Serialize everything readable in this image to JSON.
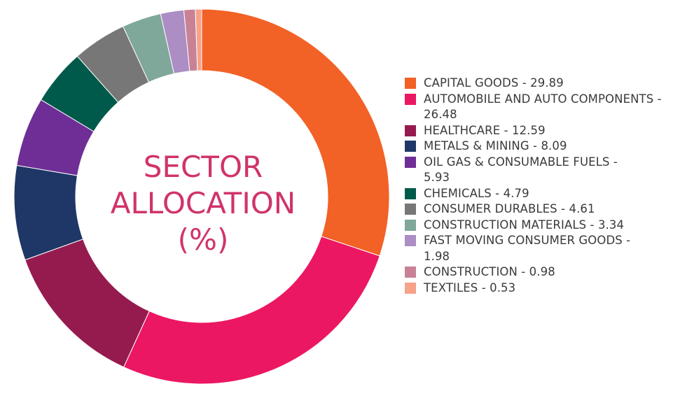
{
  "title_lines": [
    "SECTOR",
    "ALLOCATION",
    "(%)"
  ],
  "chart_data": {
    "type": "pie",
    "style": "donut",
    "title": "SECTOR ALLOCATION (%)",
    "categories": [
      "CAPITAL GOODS",
      "AUTOMOBILE AND AUTO COMPONENTS",
      "HEALTHCARE",
      "METALS & MINING",
      "OIL GAS & CONSUMABLE FUELS",
      "CHEMICALS",
      "CONSUMER DURABLES",
      "CONSTRUCTION MATERIALS",
      "FAST MOVING CONSUMER GOODS",
      "CONSTRUCTION",
      "TEXTILES"
    ],
    "values": [
      29.89,
      26.48,
      12.59,
      8.09,
      5.93,
      4.79,
      4.61,
      3.34,
      1.98,
      0.98,
      0.53
    ],
    "colors": [
      "#f26126",
      "#ec1763",
      "#951b4f",
      "#1e3766",
      "#6e2e96",
      "#005a4b",
      "#777777",
      "#7fa89a",
      "#ac8dc4",
      "#c98295",
      "#f7a28a"
    ],
    "legend_labels": [
      "CAPITAL GOODS - 29.89",
      "AUTOMOBILE AND AUTO COMPONENTS - 26.48",
      "HEALTHCARE - 12.59",
      "METALS & MINING - 8.09",
      "OIL GAS & CONSUMABLE FUELS - 5.93",
      "CHEMICALS - 4.79",
      "CONSUMER DURABLES - 4.61",
      "CONSTRUCTION MATERIALS - 3.34",
      "FAST MOVING CONSUMER GOODS - 1.98",
      "CONSTRUCTION - 0.98",
      "TEXTILES - 0.53"
    ],
    "legend_placement": "right"
  }
}
